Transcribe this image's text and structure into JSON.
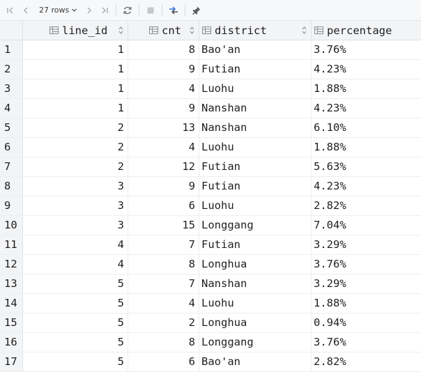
{
  "toolbar": {
    "rows_label": "27 rows",
    "icons": [
      "first-page-icon",
      "prev-page-icon",
      "rows-dropdown-icon",
      "next-page-icon",
      "last-page-icon",
      "refresh-icon",
      "stop-icon",
      "compare-icon",
      "pin-icon"
    ]
  },
  "columns": [
    {
      "name": "line_id",
      "key": "line_id"
    },
    {
      "name": "cnt",
      "key": "cnt"
    },
    {
      "name": "district",
      "key": "district"
    },
    {
      "name": "percentage",
      "key": "percentage"
    }
  ],
  "rows": [
    {
      "n": "1",
      "line_id": "1",
      "cnt": "8",
      "district": "Bao'an",
      "percentage": "3.76%"
    },
    {
      "n": "2",
      "line_id": "1",
      "cnt": "9",
      "district": "Futian",
      "percentage": "4.23%"
    },
    {
      "n": "3",
      "line_id": "1",
      "cnt": "4",
      "district": "Luohu",
      "percentage": "1.88%"
    },
    {
      "n": "4",
      "line_id": "1",
      "cnt": "9",
      "district": "Nanshan",
      "percentage": "4.23%"
    },
    {
      "n": "5",
      "line_id": "2",
      "cnt": "13",
      "district": "Nanshan",
      "percentage": "6.10%"
    },
    {
      "n": "6",
      "line_id": "2",
      "cnt": "4",
      "district": "Luohu",
      "percentage": "1.88%"
    },
    {
      "n": "7",
      "line_id": "2",
      "cnt": "12",
      "district": "Futian",
      "percentage": "5.63%"
    },
    {
      "n": "8",
      "line_id": "3",
      "cnt": "9",
      "district": "Futian",
      "percentage": "4.23%"
    },
    {
      "n": "9",
      "line_id": "3",
      "cnt": "6",
      "district": "Luohu",
      "percentage": "2.82%"
    },
    {
      "n": "10",
      "line_id": "3",
      "cnt": "15",
      "district": "Longgang",
      "percentage": "7.04%"
    },
    {
      "n": "11",
      "line_id": "4",
      "cnt": "7",
      "district": "Futian",
      "percentage": "3.29%"
    },
    {
      "n": "12",
      "line_id": "4",
      "cnt": "8",
      "district": "Longhua",
      "percentage": "3.76%"
    },
    {
      "n": "13",
      "line_id": "5",
      "cnt": "7",
      "district": "Nanshan",
      "percentage": "3.29%"
    },
    {
      "n": "14",
      "line_id": "5",
      "cnt": "4",
      "district": "Luohu",
      "percentage": "1.88%"
    },
    {
      "n": "15",
      "line_id": "5",
      "cnt": "2",
      "district": "Longhua",
      "percentage": "0.94%"
    },
    {
      "n": "16",
      "line_id": "5",
      "cnt": "8",
      "district": "Longgang",
      "percentage": "3.76%"
    },
    {
      "n": "17",
      "line_id": "5",
      "cnt": "6",
      "district": "Bao'an",
      "percentage": "2.82%"
    }
  ]
}
